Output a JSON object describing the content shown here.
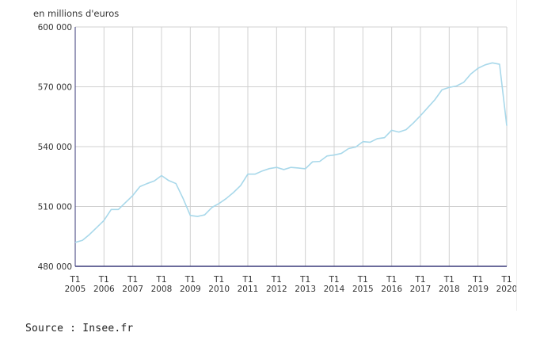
{
  "chart_data": {
    "type": "line",
    "unit_label": "en millions d'euros",
    "ylim": [
      480000,
      600000
    ],
    "yticks": [
      {
        "value": 600000,
        "label": "600 000"
      },
      {
        "value": 570000,
        "label": "570 000"
      },
      {
        "value": 540000,
        "label": "540 000"
      },
      {
        "value": 510000,
        "label": "510 000"
      },
      {
        "value": 480000,
        "label": "480 000"
      }
    ],
    "xticks": [
      {
        "quarter": "T1",
        "year": "2005"
      },
      {
        "quarter": "T1",
        "year": "2006"
      },
      {
        "quarter": "T1",
        "year": "2007"
      },
      {
        "quarter": "T1",
        "year": "2008"
      },
      {
        "quarter": "T1",
        "year": "2009"
      },
      {
        "quarter": "T1",
        "year": "2010"
      },
      {
        "quarter": "T1",
        "year": "2011"
      },
      {
        "quarter": "T1",
        "year": "2012"
      },
      {
        "quarter": "T1",
        "year": "2013"
      },
      {
        "quarter": "T1",
        "year": "2014"
      },
      {
        "quarter": "T1",
        "year": "2015"
      },
      {
        "quarter": "T1",
        "year": "2016"
      },
      {
        "quarter": "T1",
        "year": "2017"
      },
      {
        "quarter": "T1",
        "year": "2018"
      },
      {
        "quarter": "T1",
        "year": "2019"
      },
      {
        "quarter": "T1",
        "year": "2020"
      }
    ],
    "grid": true,
    "series": [
      {
        "line_color": "#a8d8ea",
        "points": [
          {
            "x": "T1 2005",
            "y": 492000
          },
          {
            "x": "T2 2005",
            "y": 493000
          },
          {
            "x": "T3 2005",
            "y": 496000
          },
          {
            "x": "T4 2005",
            "y": 499500
          },
          {
            "x": "T1 2006",
            "y": 503000
          },
          {
            "x": "T2 2006",
            "y": 508500
          },
          {
            "x": "T3 2006",
            "y": 508500
          },
          {
            "x": "T4 2006",
            "y": 512000
          },
          {
            "x": "T1 2007",
            "y": 515500
          },
          {
            "x": "T2 2007",
            "y": 520000
          },
          {
            "x": "T3 2007",
            "y": 521500
          },
          {
            "x": "T4 2007",
            "y": 522800
          },
          {
            "x": "T1 2008",
            "y": 525500
          },
          {
            "x": "T2 2008",
            "y": 523000
          },
          {
            "x": "T3 2008",
            "y": 521500
          },
          {
            "x": "T4 2008",
            "y": 514000
          },
          {
            "x": "T1 2009",
            "y": 505500
          },
          {
            "x": "T2 2009",
            "y": 505000
          },
          {
            "x": "T3 2009",
            "y": 505800
          },
          {
            "x": "T4 2009",
            "y": 509500
          },
          {
            "x": "T1 2010",
            "y": 511500
          },
          {
            "x": "T2 2010",
            "y": 514000
          },
          {
            "x": "T3 2010",
            "y": 517000
          },
          {
            "x": "T4 2010",
            "y": 520500
          },
          {
            "x": "T1 2011",
            "y": 526200
          },
          {
            "x": "T2 2011",
            "y": 526200
          },
          {
            "x": "T3 2011",
            "y": 527800
          },
          {
            "x": "T4 2011",
            "y": 529000
          },
          {
            "x": "T1 2012",
            "y": 529600
          },
          {
            "x": "T2 2012",
            "y": 528500
          },
          {
            "x": "T3 2012",
            "y": 529600
          },
          {
            "x": "T4 2012",
            "y": 529300
          },
          {
            "x": "T1 2013",
            "y": 528900
          },
          {
            "x": "T2 2013",
            "y": 532400
          },
          {
            "x": "T3 2013",
            "y": 532600
          },
          {
            "x": "T4 2013",
            "y": 535300
          },
          {
            "x": "T1 2014",
            "y": 535800
          },
          {
            "x": "T2 2014",
            "y": 536600
          },
          {
            "x": "T3 2014",
            "y": 539000
          },
          {
            "x": "T4 2014",
            "y": 539800
          },
          {
            "x": "T1 2015",
            "y": 542500
          },
          {
            "x": "T2 2015",
            "y": 542200
          },
          {
            "x": "T3 2015",
            "y": 544000
          },
          {
            "x": "T4 2015",
            "y": 544500
          },
          {
            "x": "T1 2016",
            "y": 548200
          },
          {
            "x": "T2 2016",
            "y": 547300
          },
          {
            "x": "T3 2016",
            "y": 548500
          },
          {
            "x": "T4 2016",
            "y": 551800
          },
          {
            "x": "T1 2017",
            "y": 555500
          },
          {
            "x": "T2 2017",
            "y": 559500
          },
          {
            "x": "T3 2017",
            "y": 563500
          },
          {
            "x": "T4 2017",
            "y": 568500
          },
          {
            "x": "T1 2018",
            "y": 569700
          },
          {
            "x": "T2 2018",
            "y": 570400
          },
          {
            "x": "T3 2018",
            "y": 572200
          },
          {
            "x": "T4 2018",
            "y": 576400
          },
          {
            "x": "T1 2019",
            "y": 579300
          },
          {
            "x": "T2 2019",
            "y": 581000
          },
          {
            "x": "T3 2019",
            "y": 582000
          },
          {
            "x": "T4 2019",
            "y": 581300
          },
          {
            "x": "T1 2020",
            "y": 550500
          }
        ]
      }
    ]
  },
  "footer": {
    "source": "Source : Insee.fr"
  }
}
